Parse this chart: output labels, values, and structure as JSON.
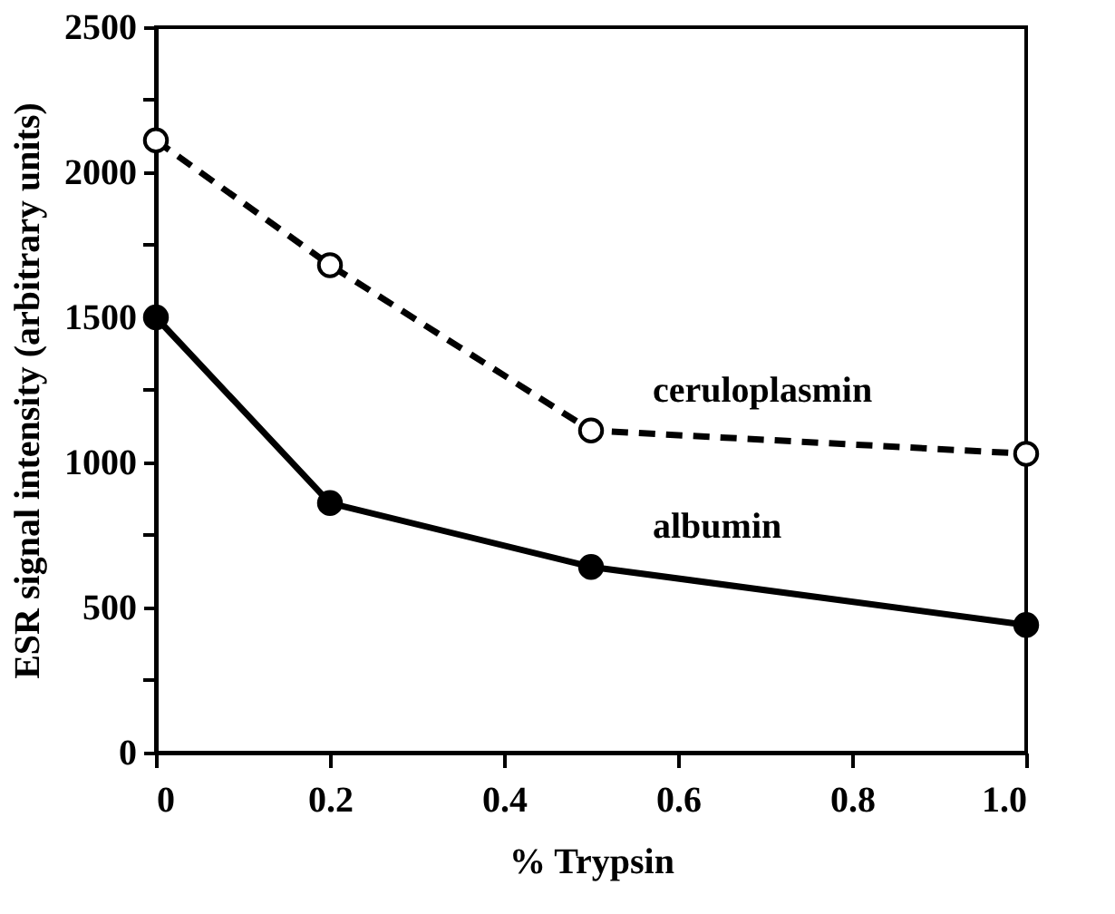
{
  "chart_data": {
    "type": "line",
    "xlabel": "% Trypsin",
    "ylabel": "ESR signal intensity (arbitrary units)",
    "x": [
      0,
      0.2,
      0.5,
      1.0
    ],
    "series": [
      {
        "name": "ceruloplasmin",
        "color": "#000000",
        "values": [
          2110,
          1680,
          1110,
          1030
        ],
        "line_style": "dashed",
        "marker": "circle"
      },
      {
        "name": "albumin",
        "color": "#000000",
        "values": [
          1500,
          860,
          640,
          440
        ],
        "line_style": "solid",
        "marker": "circle"
      }
    ],
    "xlim": [
      0,
      1.0
    ],
    "ylim": [
      0,
      2500
    ],
    "xticks": [
      0,
      0.2,
      0.4,
      0.6,
      0.8,
      {
        "value": 1.0,
        "label": "1.0"
      }
    ],
    "yticks": [
      0,
      {
        "value": 250,
        "label": null
      },
      500,
      {
        "value": 750,
        "label": null
      },
      1000,
      {
        "value": 1250,
        "label": null
      },
      1500,
      {
        "value": 1750,
        "label": null
      },
      2000,
      {
        "value": 2250,
        "label": null
      },
      2500
    ],
    "grid": false,
    "legend": false
  }
}
